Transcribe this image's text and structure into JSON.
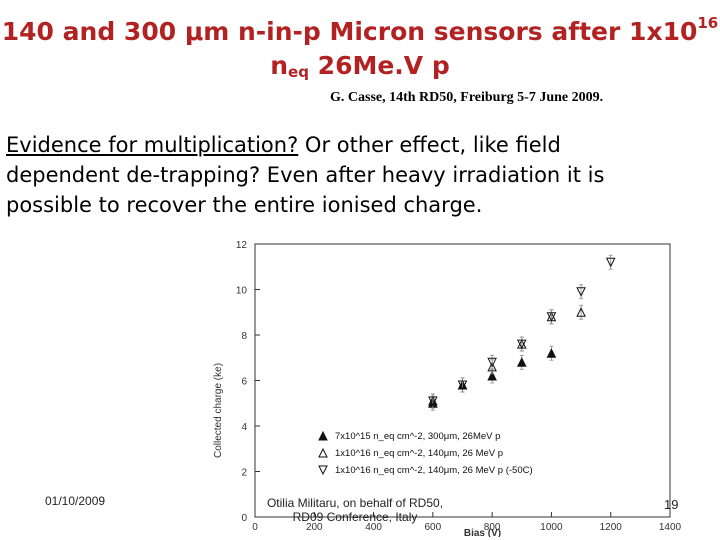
{
  "slide": {
    "title_line1_pre": "140 and 300 ",
    "title_mu": "μ",
    "title_line1_mid": "m n-in-p Micron sensors after 1x10",
    "title_sup": "16",
    "title_n": "n",
    "title_sub": "eq",
    "title_line2_post": " 26Me.V p",
    "citation": "G. Casse, 14th RD50, Freiburg 5-7 June 2009.",
    "body_underlined": "Evidence for multiplication?",
    "body_rest": " Or other effect, like field dependent de-trapping? Even after heavy irradiation it is possible to recover the entire ionised charge.",
    "footer_date": "01/10/2009",
    "footer_center_line1": "Otilia Militaru, on behalf of RD50,",
    "footer_center_line2": "RD09 Conference, Italy",
    "slide_number": "19"
  },
  "chart_data": {
    "type": "scatter",
    "xlabel": "Bias (V)",
    "ylabel": "Collected charge (ke)",
    "xlim": [
      0,
      1400
    ],
    "ylim": [
      0,
      12
    ],
    "x_ticks": [
      0,
      200,
      400,
      600,
      800,
      1000,
      1200,
      1400
    ],
    "y_ticks": [
      0,
      2,
      4,
      6,
      8,
      10,
      12
    ],
    "grid": false,
    "legend_position": "bottom-right",
    "series": [
      {
        "name": "7x10^15 n_eq cm^-2, 300μm, 26MeV p",
        "marker": "filled-triangle-up",
        "x": [
          600,
          700,
          800,
          900,
          1000
        ],
        "y": [
          5.0,
          5.8,
          6.2,
          6.8,
          7.2
        ]
      },
      {
        "name": "1x10^16 n_eq cm^-2, 140μm, 26 MeV p",
        "marker": "open-triangle-up",
        "x": [
          600,
          700,
          800,
          900,
          1000,
          1100
        ],
        "y": [
          5.1,
          5.8,
          6.6,
          7.6,
          8.8,
          9.0
        ]
      },
      {
        "name": "1x10^16 n_eq cm^-2, 140μm, 26 MeV p (-50C)",
        "marker": "open-triangle-down",
        "x": [
          600,
          700,
          800,
          900,
          1000,
          1100,
          1200
        ],
        "y": [
          5.1,
          5.8,
          6.8,
          7.6,
          8.8,
          9.9,
          11.2
        ]
      }
    ]
  }
}
